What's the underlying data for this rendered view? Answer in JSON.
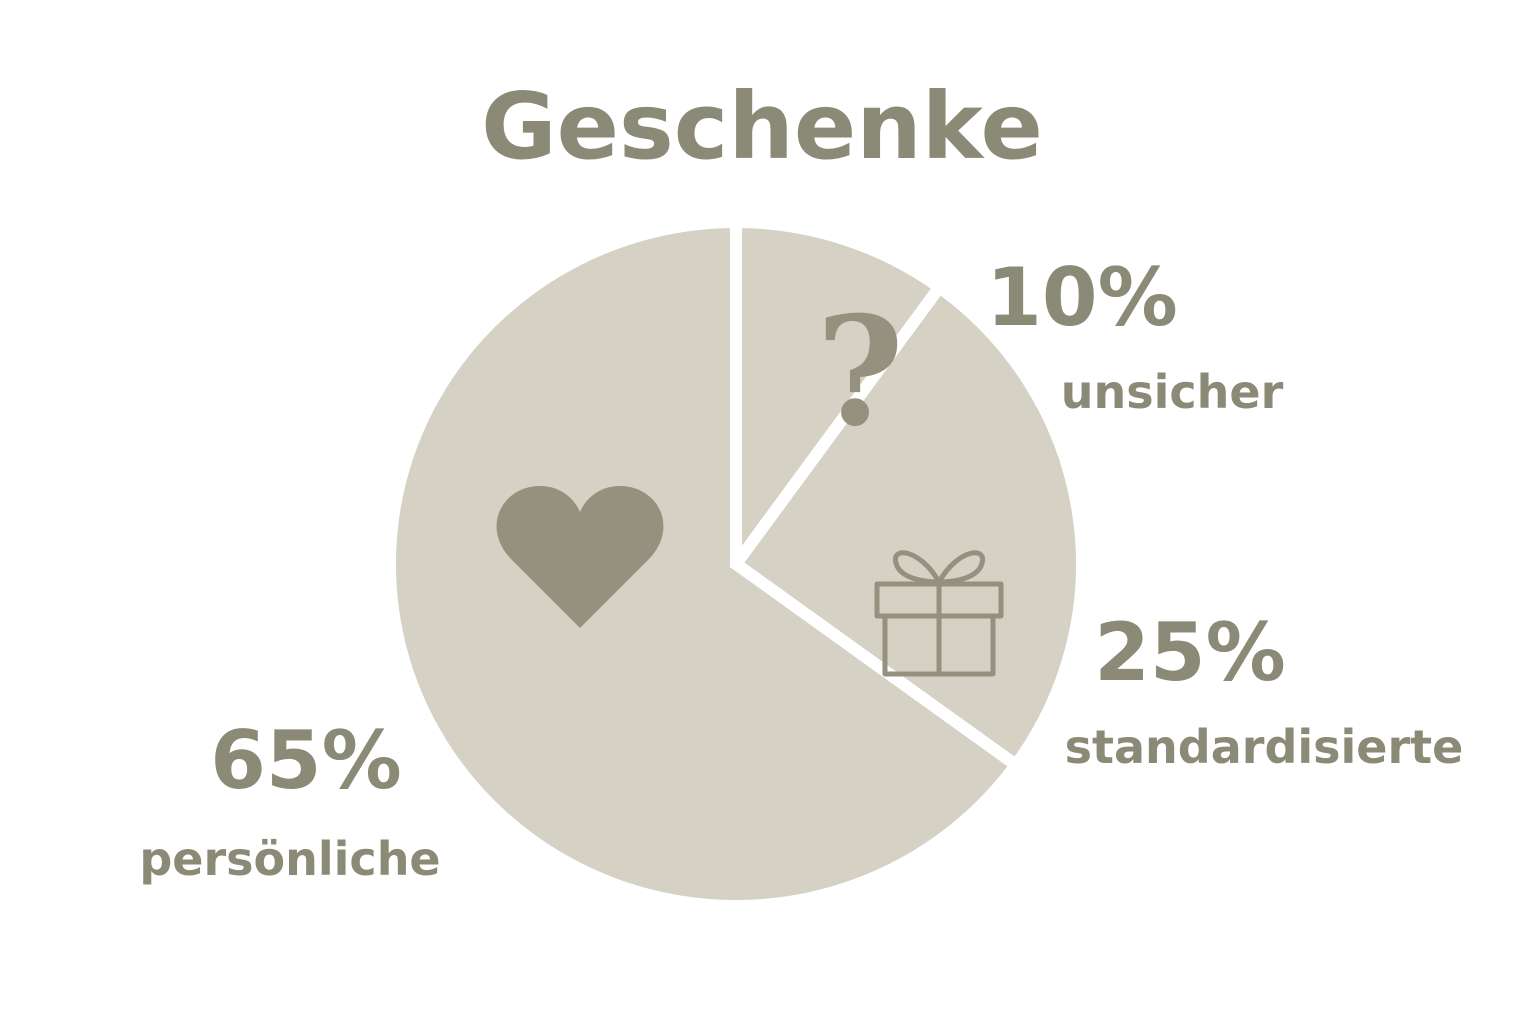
{
  "chart_data": {
    "type": "pie",
    "title": "Geschenke",
    "slices": [
      {
        "label": "unsicher",
        "value": 10,
        "value_label": "10%",
        "icon": "question-mark-icon"
      },
      {
        "label": "standardisierte",
        "value": 25,
        "value_label": "25%",
        "icon": "gift-icon"
      },
      {
        "label": "persönliche",
        "value": 65,
        "value_label": "65%",
        "icon": "heart-icon"
      }
    ],
    "colors": {
      "slice_fill": "#d5d2c5",
      "slice_separator": "#ffffff",
      "text": "#8b8a77",
      "icon": "#94917e"
    },
    "legend": "none",
    "start_angle": "top (12 o'clock), clockwise"
  }
}
